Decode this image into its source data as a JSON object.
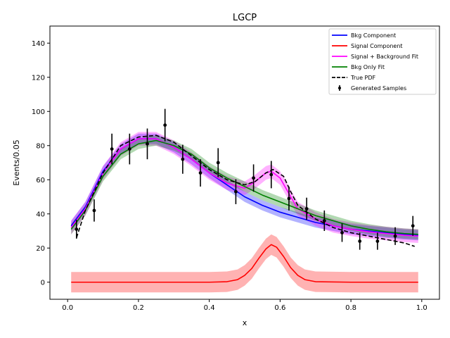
{
  "chart_data": {
    "type": "line",
    "title": "LGCP",
    "xlabel": "x",
    "ylabel": "Events/0.05",
    "xlim": [
      -0.05,
      1.05
    ],
    "ylim": [
      -10,
      150
    ],
    "xticks": [
      "0.0",
      "0.2",
      "0.4",
      "0.6",
      "0.8",
      "1.0"
    ],
    "yticks": [
      "0",
      "20",
      "40",
      "60",
      "80",
      "100",
      "120",
      "140"
    ],
    "xtick_values": [
      0.0,
      0.2,
      0.4,
      0.6,
      0.8,
      1.0
    ],
    "ytick_values": [
      0,
      20,
      40,
      60,
      80,
      100,
      120,
      140
    ],
    "grid": false,
    "legend_position": "top-right",
    "legend": [
      {
        "label": "Bkg Component",
        "color": "#0000ff",
        "style": "solid"
      },
      {
        "label": "Signal Component",
        "color": "#ff0000",
        "style": "solid"
      },
      {
        "label": "Signal + Background Fit",
        "color": "#ff00ff",
        "style": "solid"
      },
      {
        "label": "Bkg Only Fit",
        "color": "#008000",
        "style": "solid"
      },
      {
        "label": "True PDF",
        "color": "#000000",
        "style": "dashed"
      },
      {
        "label": "Generated Samples",
        "color": "#000000",
        "style": "errorbar"
      }
    ],
    "series": [
      {
        "name": "Bkg Component",
        "color": "#0000ff",
        "band_width": 3,
        "x": [
          0.01,
          0.05,
          0.1,
          0.15,
          0.2,
          0.25,
          0.3,
          0.35,
          0.4,
          0.45,
          0.5,
          0.55,
          0.6,
          0.65,
          0.7,
          0.75,
          0.8,
          0.85,
          0.9,
          0.95,
          0.99
        ],
        "y": [
          33,
          44,
          65,
          78,
          84,
          84,
          79,
          72,
          64,
          57,
          50,
          45,
          41,
          38,
          35,
          33,
          31,
          30,
          29,
          28,
          27.5
        ]
      },
      {
        "name": "Signal Component",
        "color": "#ff0000",
        "band_width": 6,
        "x": [
          0.01,
          0.1,
          0.2,
          0.3,
          0.4,
          0.45,
          0.48,
          0.5,
          0.52,
          0.54,
          0.56,
          0.575,
          0.59,
          0.61,
          0.63,
          0.65,
          0.67,
          0.7,
          0.8,
          0.9,
          0.99
        ],
        "y": [
          0,
          0,
          0,
          0,
          0,
          0.3,
          1.5,
          4,
          8,
          14,
          19.5,
          22,
          20.5,
          15,
          8.5,
          4,
          1.5,
          0.3,
          0,
          0,
          0
        ]
      },
      {
        "name": "Signal + Background Fit",
        "color": "#ff00ff",
        "band_width": 4,
        "x": [
          0.01,
          0.05,
          0.1,
          0.15,
          0.2,
          0.25,
          0.3,
          0.35,
          0.4,
          0.45,
          0.5,
          0.53,
          0.56,
          0.575,
          0.6,
          0.63,
          0.65,
          0.7,
          0.75,
          0.8,
          0.85,
          0.9,
          0.95,
          0.99
        ],
        "y": [
          32,
          43,
          64,
          78,
          84,
          84,
          79,
          72,
          64,
          58,
          55,
          59,
          64,
          65,
          61,
          50,
          43,
          37,
          33,
          31,
          29.5,
          28.5,
          27.5,
          27
        ]
      },
      {
        "name": "Bkg Only Fit",
        "color": "#008000",
        "band_width": 3,
        "x": [
          0.01,
          0.05,
          0.1,
          0.15,
          0.2,
          0.25,
          0.3,
          0.35,
          0.4,
          0.45,
          0.5,
          0.55,
          0.6,
          0.65,
          0.7,
          0.75,
          0.8,
          0.85,
          0.9,
          0.95,
          0.99
        ],
        "y": [
          31,
          42,
          62,
          75,
          81,
          83,
          80,
          75,
          67,
          61,
          56,
          51,
          47,
          43,
          39,
          36,
          33,
          31,
          29.5,
          28.5,
          28
        ]
      },
      {
        "name": "True PDF",
        "color": "#000000",
        "style": "dashed",
        "x": [
          0.025,
          0.05,
          0.1,
          0.15,
          0.2,
          0.25,
          0.3,
          0.35,
          0.4,
          0.45,
          0.5,
          0.53,
          0.56,
          0.58,
          0.61,
          0.63,
          0.65,
          0.7,
          0.75,
          0.8,
          0.85,
          0.9,
          0.95,
          0.98
        ],
        "y": [
          26,
          42,
          64,
          80,
          85,
          86,
          82,
          74,
          66,
          60,
          57,
          59,
          64,
          66,
          62,
          53,
          45,
          37,
          32,
          29,
          27,
          25,
          23,
          21
        ]
      }
    ],
    "samples": {
      "name": "Generated Samples",
      "x": [
        0.025,
        0.075,
        0.125,
        0.175,
        0.225,
        0.275,
        0.325,
        0.375,
        0.425,
        0.475,
        0.525,
        0.575,
        0.625,
        0.675,
        0.725,
        0.775,
        0.825,
        0.875,
        0.925,
        0.975
      ],
      "y": [
        31,
        42,
        78,
        78,
        81,
        92,
        72,
        64,
        70,
        53,
        61,
        63,
        49,
        43,
        36,
        29,
        24,
        24,
        27,
        33
      ],
      "err": [
        5.5,
        6.5,
        9,
        9,
        9,
        9.5,
        8.5,
        8,
        8.5,
        7.3,
        8,
        8,
        7,
        6.5,
        6,
        5.4,
        5,
        5,
        5.2,
        5.8
      ]
    }
  }
}
